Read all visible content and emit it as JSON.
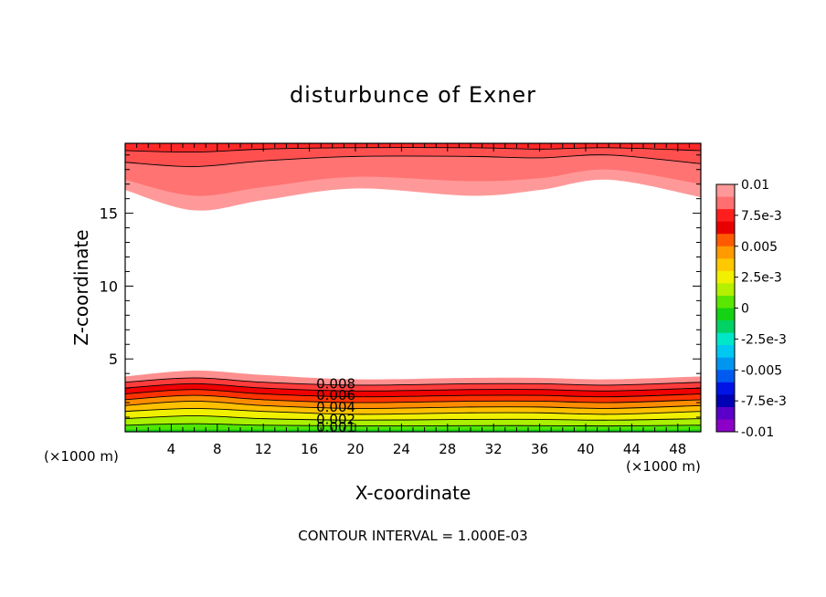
{
  "chart_data": {
    "type": "contour",
    "title": "disturbunce of Exner",
    "xlabel": "X-coordinate",
    "ylabel": "Z-coordinate",
    "x_unit_left": "(×1000 m)",
    "x_unit_right": "(×1000 m)",
    "xlim": [
      0,
      50
    ],
    "ylim": [
      0,
      19.8
    ],
    "x_ticks": [
      4,
      8,
      12,
      16,
      20,
      24,
      28,
      32,
      36,
      40,
      44,
      48
    ],
    "y_ticks": [
      5,
      10,
      15
    ],
    "footer": "CONTOUR INTERVAL = 1.000E-03",
    "contour_interval": 0.001,
    "contour_labels": [
      "0.008",
      "0.006",
      "0.004",
      "0.002",
      "0.001"
    ],
    "colorbar": {
      "labels": [
        "0.01",
        "7.5e-3",
        "0.005",
        "2.5e-3",
        "0",
        "-2.5e-3",
        "-0.005",
        "-7.5e-3",
        "-0.01"
      ],
      "label_values": [
        0.01,
        0.0075,
        0.005,
        0.0025,
        0,
        -0.0025,
        -0.005,
        -0.0075,
        -0.01
      ],
      "colors_top_to_bottom": [
        "#ff9999",
        "#ff6f6f",
        "#ff1e1e",
        "#e80000",
        "#ff5a00",
        "#ff9a00",
        "#ffc800",
        "#f0f000",
        "#b4f000",
        "#5ae600",
        "#14d214",
        "#00d264",
        "#00e6c8",
        "#00c8f0",
        "#0096f0",
        "#005af0",
        "#0014e6",
        "#0000b4",
        "#5a00c8",
        "#8c00c8"
      ]
    },
    "fields": {
      "upper_band": {
        "levels": [
          0.007,
          0.008,
          0.009,
          0.01
        ],
        "z_at_x": {
          "x": [
            0,
            6,
            12,
            20,
            30,
            36,
            42,
            50
          ],
          "z_0.007": [
            16.6,
            15.2,
            15.9,
            16.7,
            16.2,
            16.6,
            17.3,
            16.1
          ],
          "z_0.008": [
            17.3,
            16.2,
            16.8,
            17.5,
            17.2,
            17.4,
            18.0,
            17.0
          ],
          "z_0.009": [
            18.5,
            18.2,
            18.6,
            18.9,
            18.9,
            18.8,
            19.0,
            18.4
          ],
          "z_0.01": [
            19.3,
            19.2,
            19.4,
            19.5,
            19.5,
            19.4,
            19.5,
            19.3
          ]
        }
      },
      "lower_band": {
        "levels": [
          0.001,
          0.002,
          0.003,
          0.004,
          0.005,
          0.006,
          0.007,
          0.008,
          0.009
        ],
        "z_at_x": {
          "x": [
            0,
            6,
            12,
            20,
            30,
            36,
            42,
            50
          ],
          "z_0.009": [
            3.8,
            4.2,
            3.9,
            3.6,
            3.7,
            3.7,
            3.6,
            3.8
          ],
          "z_0.008": [
            3.4,
            3.7,
            3.4,
            3.2,
            3.3,
            3.3,
            3.2,
            3.4
          ],
          "z_0.007": [
            3.0,
            3.3,
            3.0,
            2.8,
            2.9,
            2.9,
            2.8,
            3.0
          ],
          "z_0.006": [
            2.6,
            2.9,
            2.6,
            2.4,
            2.5,
            2.5,
            2.4,
            2.6
          ],
          "z_0.005": [
            2.2,
            2.5,
            2.2,
            2.0,
            2.1,
            2.1,
            2.0,
            2.2
          ],
          "z_0.004": [
            1.8,
            2.1,
            1.8,
            1.6,
            1.7,
            1.7,
            1.6,
            1.8
          ],
          "z_0.003": [
            1.4,
            1.6,
            1.4,
            1.2,
            1.3,
            1.3,
            1.2,
            1.4
          ],
          "z_0.002": [
            0.9,
            1.1,
            0.9,
            0.8,
            0.85,
            0.85,
            0.8,
            0.9
          ],
          "z_0.001": [
            0.45,
            0.55,
            0.45,
            0.4,
            0.42,
            0.42,
            0.4,
            0.45
          ]
        }
      }
    }
  }
}
